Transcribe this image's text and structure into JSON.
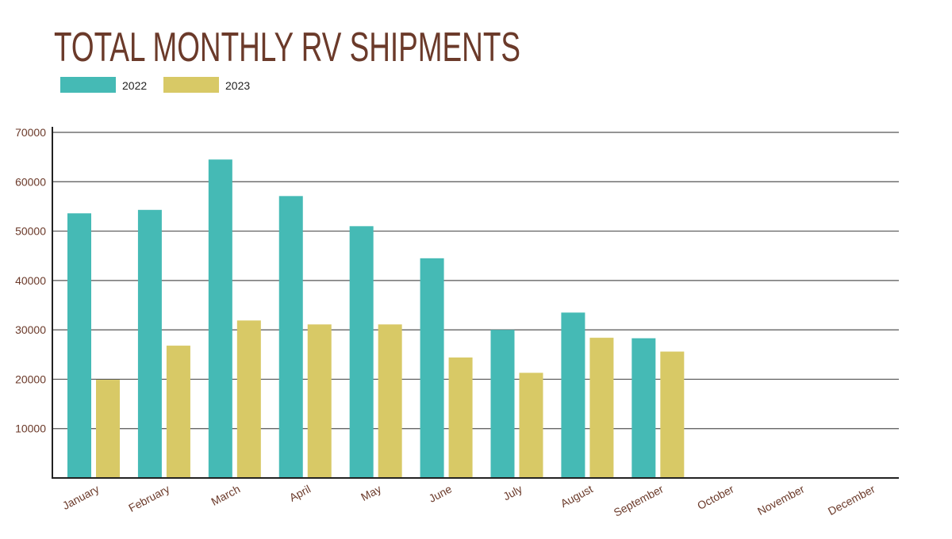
{
  "chart_data": {
    "type": "bar",
    "title": "TOTAL MONTHLY RV SHIPMENTS",
    "xlabel": "",
    "ylabel": "",
    "categories": [
      "January",
      "February",
      "March",
      "April",
      "May",
      "June",
      "July",
      "August",
      "September",
      "October",
      "November",
      "December"
    ],
    "series": [
      {
        "name": "2022",
        "color": "#45bab5",
        "values": [
          53600,
          54300,
          64500,
          57100,
          51000,
          44500,
          30000,
          33500,
          28300,
          null,
          null,
          null
        ]
      },
      {
        "name": "2023",
        "color": "#d8c966",
        "values": [
          19900,
          26800,
          31900,
          31100,
          31100,
          24400,
          21300,
          28400,
          25600,
          null,
          null,
          null
        ]
      }
    ],
    "ylim": [
      0,
      70000
    ],
    "yticks": [
      "10000",
      "20000",
      "30000",
      "40000",
      "50000",
      "60000",
      "70000"
    ],
    "grid": true,
    "legend_position": "top-left",
    "text_color": "#6b3a2a"
  }
}
